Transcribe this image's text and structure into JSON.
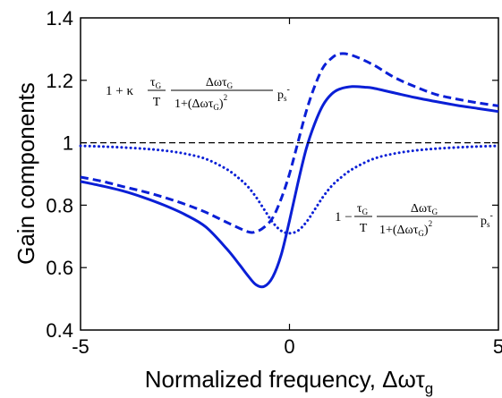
{
  "chart_data": {
    "type": "line",
    "xlabel": "Normalized frequency, Δωτ",
    "xlabel_sub": "g",
    "ylabel": "Gain components",
    "xlim": [
      -5,
      5
    ],
    "ylim": [
      0.4,
      1.4
    ],
    "xticks": [
      "-5",
      "0",
      "5"
    ],
    "yticks": [
      "0.4",
      "0.6",
      "0.8",
      "1",
      "1.2",
      "1.4"
    ],
    "grid": false,
    "series": [
      {
        "style": "solid",
        "color": "#0a1fd6",
        "x": [
          -5,
          -4.5,
          -4,
          -3.5,
          -3,
          -2.5,
          -2,
          -1.5,
          -1.2,
          -1,
          -0.8,
          -0.6,
          -0.4,
          -0.2,
          0,
          0.2,
          0.4,
          0.6,
          0.8,
          1,
          1.2,
          1.5,
          1.8,
          2,
          2.5,
          3,
          3.5,
          4,
          4.5,
          5
        ],
        "y": [
          0.876,
          0.862,
          0.846,
          0.825,
          0.8,
          0.77,
          0.73,
          0.66,
          0.61,
          0.575,
          0.545,
          0.54,
          0.57,
          0.64,
          0.75,
          0.87,
          0.98,
          1.06,
          1.12,
          1.155,
          1.172,
          1.18,
          1.178,
          1.175,
          1.16,
          1.145,
          1.132,
          1.12,
          1.11,
          1.1
        ]
      },
      {
        "style": "dashed",
        "color": "#0a1fd6",
        "x": [
          -5,
          -4.5,
          -4,
          -3.5,
          -3,
          -2.5,
          -2,
          -1.5,
          -1,
          -0.8,
          -0.6,
          -0.4,
          -0.2,
          0,
          0.2,
          0.4,
          0.6,
          0.8,
          1,
          1.2,
          1.5,
          2,
          2.5,
          3,
          3.5,
          4,
          4.5,
          5
        ],
        "y": [
          0.89,
          0.877,
          0.86,
          0.844,
          0.825,
          0.803,
          0.777,
          0.745,
          0.715,
          0.715,
          0.73,
          0.76,
          0.82,
          0.9,
          1.0,
          1.1,
          1.18,
          1.24,
          1.27,
          1.285,
          1.28,
          1.25,
          1.21,
          1.18,
          1.155,
          1.14,
          1.128,
          1.118
        ]
      },
      {
        "style": "dotted",
        "color": "#0a1fd6",
        "x": [
          -5,
          -4.5,
          -4,
          -3.5,
          -3,
          -2.5,
          -2,
          -1.5,
          -1.2,
          -1,
          -0.8,
          -0.6,
          -0.4,
          -0.2,
          0,
          0.2,
          0.4,
          0.6,
          0.8,
          1,
          1.2,
          1.5,
          2,
          2.5,
          3,
          3.5,
          4,
          4.5,
          5
        ],
        "y": [
          0.99,
          0.988,
          0.985,
          0.981,
          0.975,
          0.965,
          0.948,
          0.915,
          0.885,
          0.86,
          0.826,
          0.785,
          0.745,
          0.718,
          0.71,
          0.718,
          0.745,
          0.785,
          0.826,
          0.86,
          0.885,
          0.915,
          0.948,
          0.965,
          0.975,
          0.981,
          0.985,
          0.988,
          0.99
        ]
      },
      {
        "style": "dashed-reference",
        "color": "#000000",
        "x": [
          -5,
          5
        ],
        "y": [
          1,
          1
        ]
      }
    ],
    "annotations": [
      {
        "name": "upper-formula",
        "lead": "1 + κ",
        "frac1_num": "τ",
        "frac1_num_sub": "G",
        "frac1_den": "T",
        "frac2_num": "Δωτ",
        "frac2_num_sub": "G",
        "frac2_den": "1+(Δωτ",
        "frac2_den_sub": "G",
        "frac2_den_tail": ")",
        "frac2_den_sup": "2",
        "tail": "p",
        "tail_sub": "s",
        "tail_sup": "-"
      },
      {
        "name": "lower-formula",
        "lead": "1 −",
        "frac1_num": "τ",
        "frac1_num_sub": "G",
        "frac1_den": "T",
        "frac2_num": "Δωτ",
        "frac2_num_sub": "G",
        "frac2_den": "1+(Δωτ",
        "frac2_den_sub": "G",
        "frac2_den_tail": ")",
        "frac2_den_sup": "2",
        "tail": "p",
        "tail_sub": "s",
        "tail_sup": "-"
      }
    ]
  }
}
